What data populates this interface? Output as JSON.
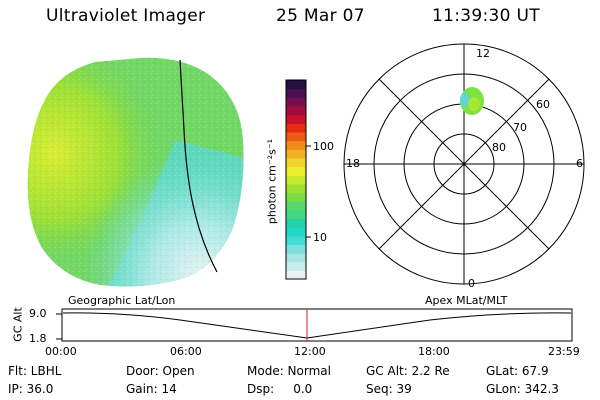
{
  "header": {
    "instrument": "Ultraviolet Imager",
    "date": "25 Mar 07",
    "time": "11:39:30 UT"
  },
  "colorbar": {
    "unit_label": "photon cm⁻²s⁻¹",
    "ticks": [
      "100",
      "10"
    ],
    "colors": [
      "#e8f4f4",
      "#c8ecec",
      "#a8e4e4",
      "#7ee0dc",
      "#44dcd4",
      "#22d8c8",
      "#22d4a8",
      "#44d884",
      "#5ad870",
      "#7cdc44",
      "#9ee030",
      "#c8e82c",
      "#ecf02c",
      "#f4d42c",
      "#f4b020",
      "#f08c18",
      "#ec5c14",
      "#e42c10",
      "#c8102c",
      "#a00c3c",
      "#780c4c",
      "#4c1050",
      "#241040"
    ]
  },
  "polar": {
    "mlt_labels": [
      "12",
      "6",
      "0",
      "18"
    ],
    "lat_labels": [
      "60",
      "70",
      "80"
    ]
  },
  "timeline": {
    "left_label": "Geographic Lat/Lon",
    "right_label": "Apex MLat/MLT",
    "y_axis_label": "GC Alt",
    "y_ticks": [
      "9.0",
      "1.8"
    ],
    "x_ticks": [
      "00:00",
      "06:00",
      "12:00",
      "18:00",
      "23:59"
    ],
    "marker_color": "#cc2222"
  },
  "status": {
    "row1": [
      "Flt: LBHL",
      "Door: Open",
      "Mode: Normal",
      "GC Alt: 2.2 Re",
      "GLat: 67.9"
    ],
    "row2": [
      "IP: 36.0",
      "Gain: 14",
      "Dsp:     0.0",
      "Seq: 39",
      "GLon: 342.3"
    ]
  }
}
